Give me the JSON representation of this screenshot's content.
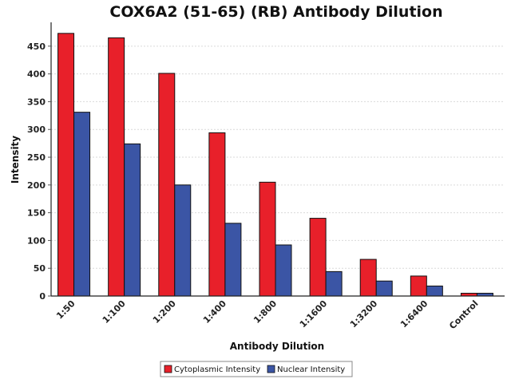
{
  "chart_data": {
    "type": "bar",
    "title": "COX6A2 (51-65) (RB) Antibody Dilution",
    "xlabel": "Antibody Dilution",
    "ylabel": "Intensity",
    "categories": [
      "1:50",
      "1:100",
      "1:200",
      "1:400",
      "1:800",
      "1:1600",
      "1:3200",
      "1:6400",
      "Control"
    ],
    "series": [
      {
        "name": "Cytoplasmic Intensity",
        "color": "#e8202a",
        "values": [
          473,
          465,
          401,
          294,
          205,
          140,
          66,
          36,
          5
        ]
      },
      {
        "name": "Nuclear Intensity",
        "color": "#3b55a5",
        "values": [
          331,
          274,
          200,
          131,
          92,
          44,
          27,
          18,
          5
        ]
      }
    ],
    "ylim": [
      0,
      490
    ],
    "yticks": [
      0,
      50,
      100,
      150,
      200,
      250,
      300,
      350,
      400,
      450
    ],
    "grid": true,
    "legend": "bottom"
  }
}
